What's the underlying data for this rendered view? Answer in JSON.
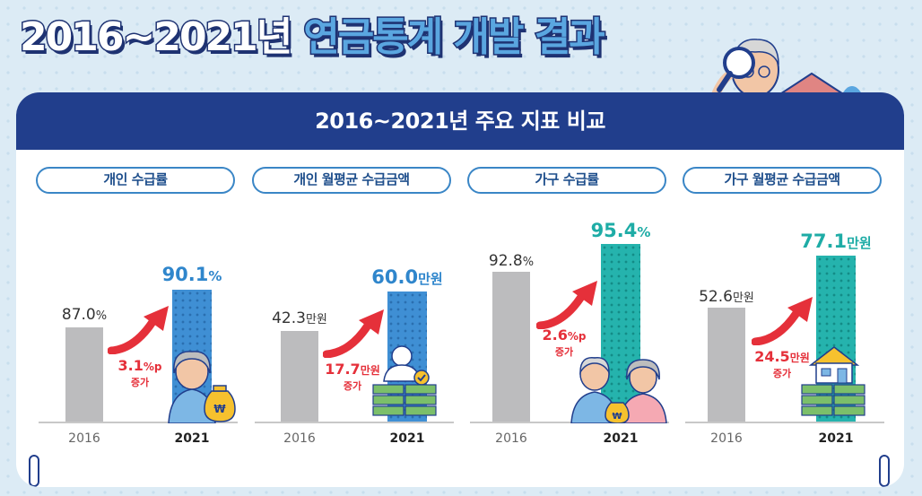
{
  "headline": {
    "years": "2016~2021년",
    "subject": "연금통계 개발 결과"
  },
  "card": {
    "title": "2016~2021년 주요 지표 비교"
  },
  "panels": [
    {
      "label": "개인 수급률",
      "value_2016": "87.0",
      "unit_2016": "%",
      "value_2021": "90.1",
      "unit_2021": "%",
      "increase_value": "3.1",
      "increase_unit": "%p",
      "increase_word": "증가",
      "year_a": "2016",
      "year_b": "2021"
    },
    {
      "label": "개인 월평균 수급금액",
      "value_2016": "42.3",
      "unit_2016": "만원",
      "value_2021": "60.0",
      "unit_2021": "만원",
      "increase_value": "17.7",
      "increase_unit": "만원",
      "increase_word": "증가",
      "year_a": "2016",
      "year_b": "2021"
    },
    {
      "label": "가구 수급률",
      "value_2016": "92.8",
      "unit_2016": "%",
      "value_2021": "95.4",
      "unit_2021": "%",
      "increase_value": "2.6",
      "increase_unit": "%p",
      "increase_word": "증가",
      "year_a": "2016",
      "year_b": "2021"
    },
    {
      "label": "가구 월평균 수급금액",
      "value_2016": "52.6",
      "unit_2016": "만원",
      "value_2021": "77.1",
      "unit_2021": "만원",
      "increase_value": "24.5",
      "increase_unit": "만원",
      "increase_word": "증가",
      "year_a": "2016",
      "year_b": "2021"
    }
  ],
  "icons": {
    "money_bag_symbol": "₩"
  },
  "colors": {
    "navy": "#213e8c",
    "blue_bar": "#3f8fd4",
    "teal_bar": "#25b3ad",
    "gray_bar": "#bcbcbe",
    "increase_red": "#e5303a"
  }
}
